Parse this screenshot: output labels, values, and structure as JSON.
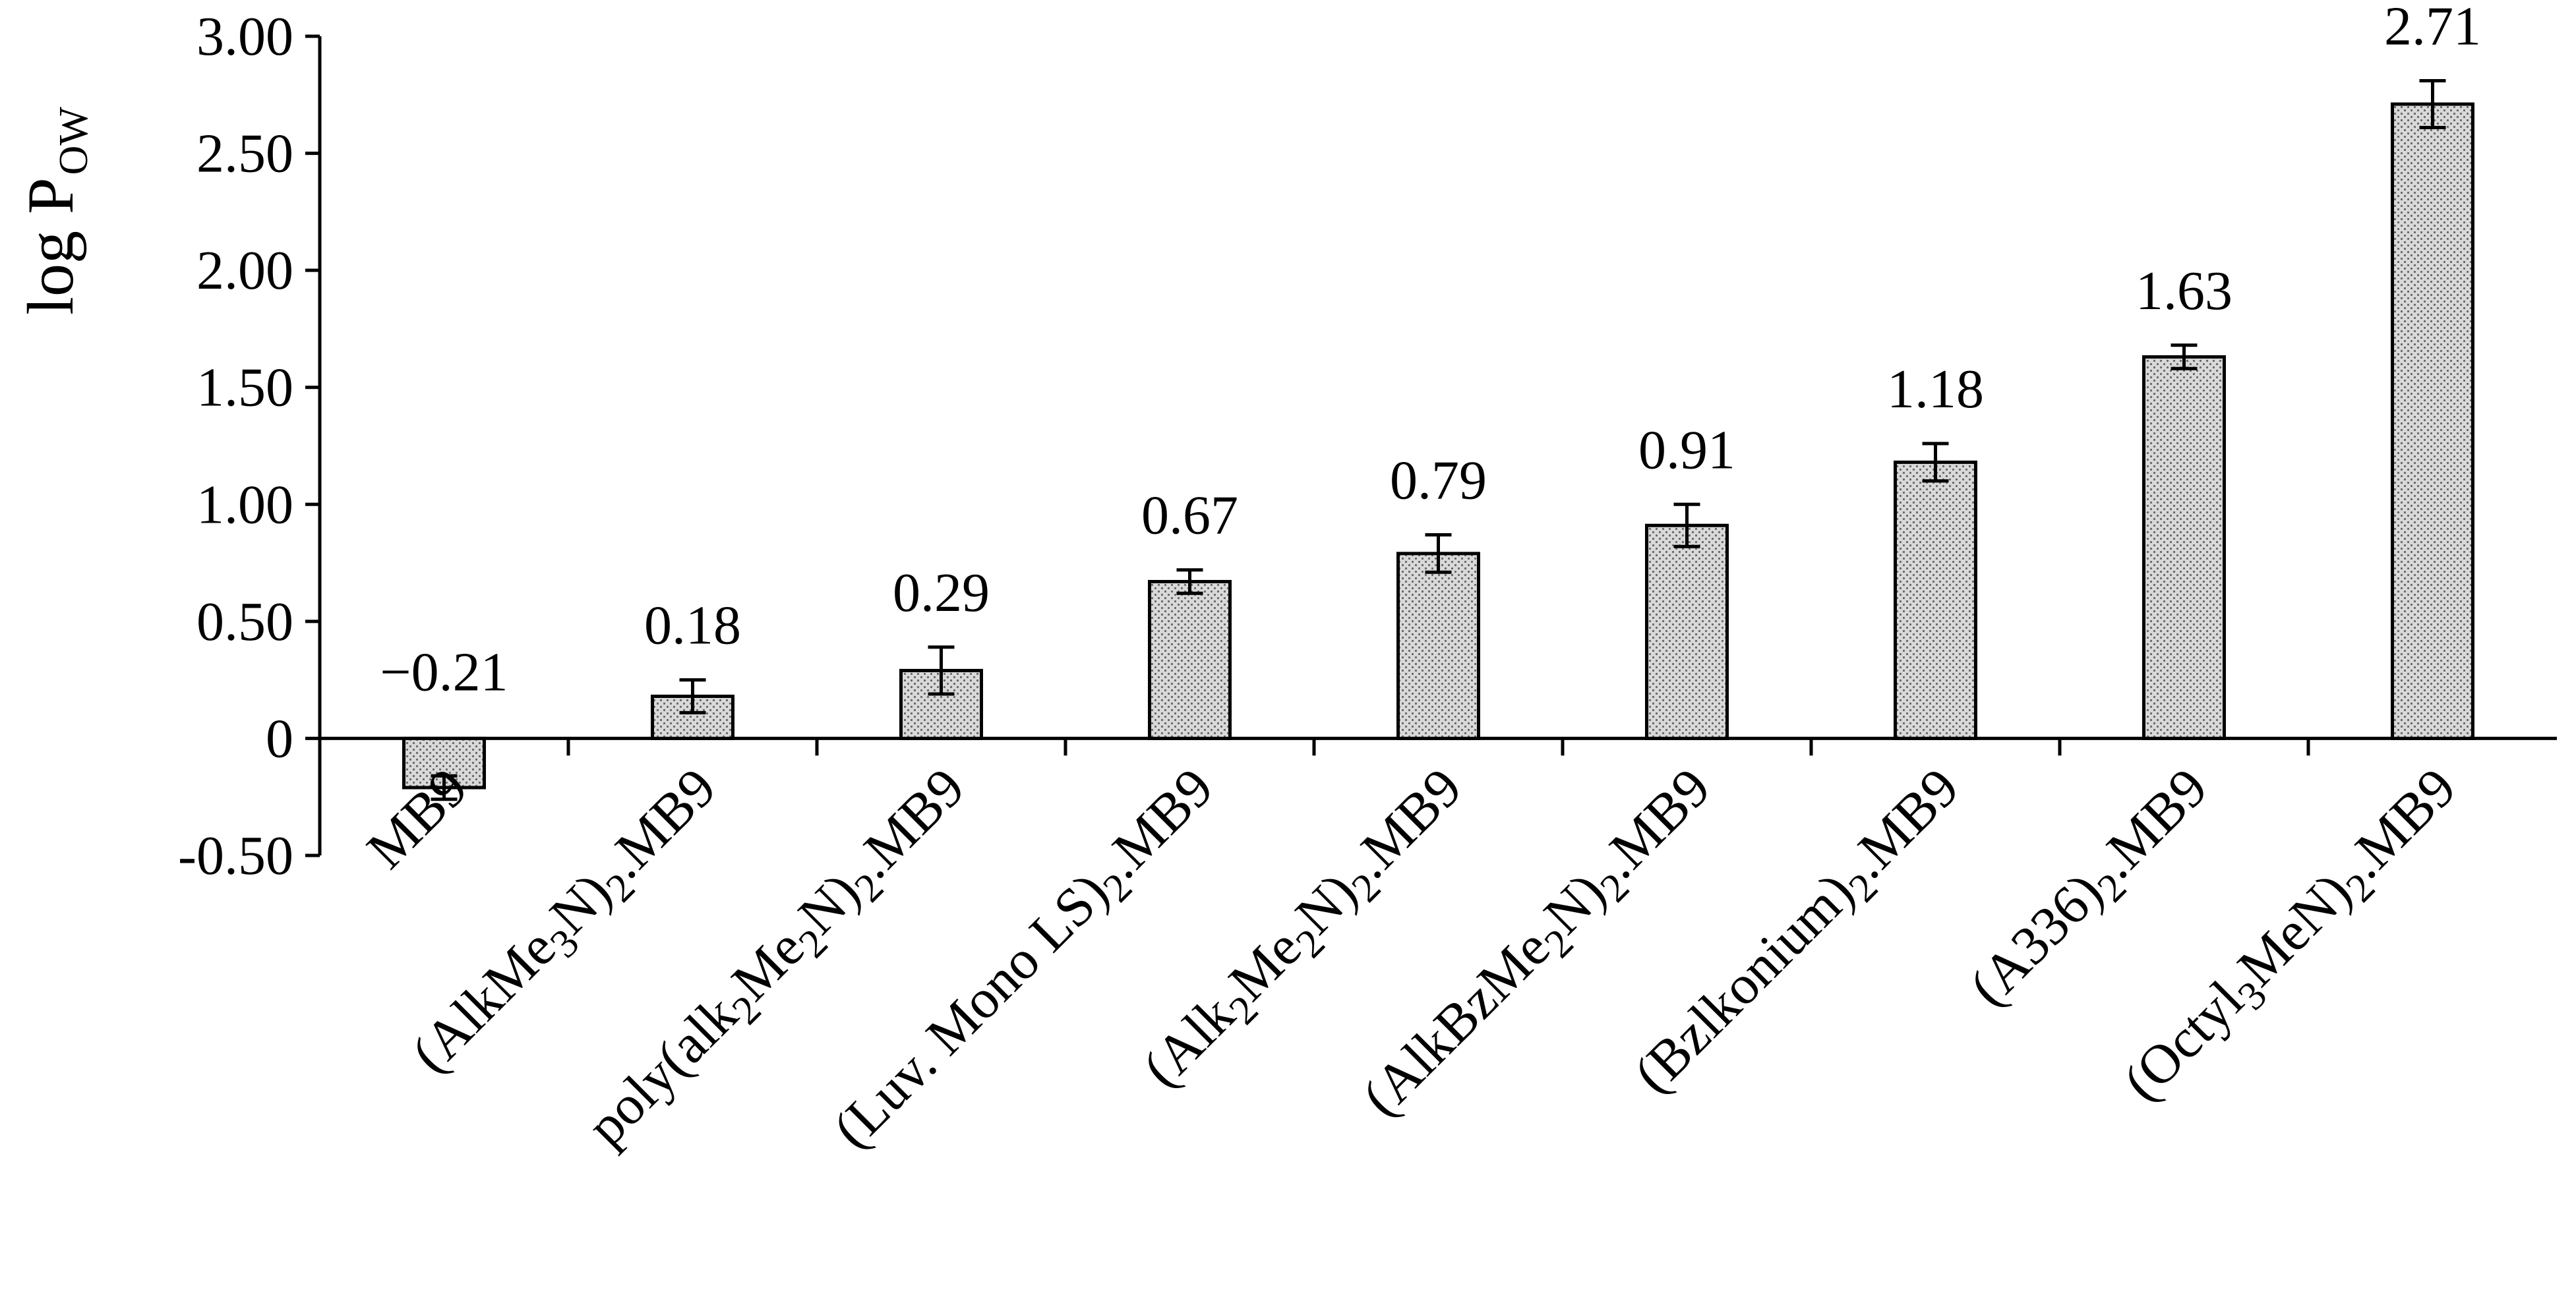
{
  "chart_data": {
    "type": "bar",
    "title": "",
    "xlabel": "",
    "ylabel": {
      "main": "log P",
      "subscript": "OW"
    },
    "ylim": [
      -0.5,
      3.0
    ],
    "yticks": [
      {
        "value": 3.0,
        "label": "3.00"
      },
      {
        "value": 2.5,
        "label": "2.50"
      },
      {
        "value": 2.0,
        "label": "2.00"
      },
      {
        "value": 1.5,
        "label": "1.50"
      },
      {
        "value": 1.0,
        "label": "1.00"
      },
      {
        "value": 0.5,
        "label": "0.50"
      },
      {
        "value": 0.0,
        "label": "0"
      },
      {
        "value": -0.5,
        "label": "-0.50"
      }
    ],
    "categories": [
      [
        {
          "t": "MB9"
        }
      ],
      [
        {
          "t": "(AlkMe"
        },
        {
          "t": "3",
          "sub": true
        },
        {
          "t": "N)"
        },
        {
          "t": "2",
          "sub": true
        },
        {
          "t": ".MB9"
        }
      ],
      [
        {
          "t": "poly(alk"
        },
        {
          "t": "2",
          "sub": true
        },
        {
          "t": "Me"
        },
        {
          "t": "2",
          "sub": true
        },
        {
          "t": "N)"
        },
        {
          "t": "2",
          "sub": true
        },
        {
          "t": ".MB9"
        }
      ],
      [
        {
          "t": "(Luv. Mono LS)"
        },
        {
          "t": "2",
          "sub": true
        },
        {
          "t": ".MB9"
        }
      ],
      [
        {
          "t": "(Alk"
        },
        {
          "t": "2",
          "sub": true
        },
        {
          "t": "Me"
        },
        {
          "t": "2",
          "sub": true
        },
        {
          "t": "N)"
        },
        {
          "t": "2",
          "sub": true
        },
        {
          "t": ".MB9"
        }
      ],
      [
        {
          "t": "(AlkBzMe"
        },
        {
          "t": "2",
          "sub": true
        },
        {
          "t": "N)"
        },
        {
          "t": "2",
          "sub": true
        },
        {
          "t": ".MB9"
        }
      ],
      [
        {
          "t": "(Bzlkonium)"
        },
        {
          "t": "2",
          "sub": true
        },
        {
          "t": ".MB9"
        }
      ],
      [
        {
          "t": "(A336)"
        },
        {
          "t": "2",
          "sub": true
        },
        {
          "t": ".MB9"
        }
      ],
      [
        {
          "t": "(Octyl"
        },
        {
          "t": "3",
          "sub": true
        },
        {
          "t": "MeN)"
        },
        {
          "t": "2",
          "sub": true
        },
        {
          "t": ".MB9"
        }
      ]
    ],
    "values": [
      -0.21,
      0.18,
      0.29,
      0.67,
      0.79,
      0.91,
      1.18,
      1.63,
      2.71
    ],
    "value_labels": [
      "−0.21",
      "0.18",
      "0.29",
      "0.67",
      "0.79",
      "0.91",
      "1.18",
      "1.63",
      "2.71"
    ],
    "errors": [
      0.05,
      0.07,
      0.1,
      0.05,
      0.08,
      0.09,
      0.08,
      0.05,
      0.1
    ],
    "bar_fill": "#d9d9d9",
    "bar_pattern_dot": "#666666",
    "bar_stroke": "#000000",
    "grid": false,
    "legend": "none"
  }
}
